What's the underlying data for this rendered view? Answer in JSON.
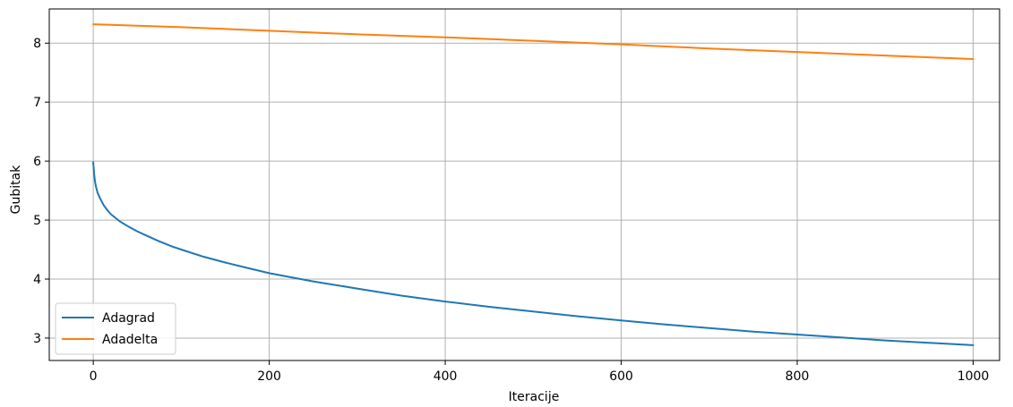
{
  "chart_data": {
    "type": "line",
    "title": "",
    "xlabel": "Iteracije",
    "ylabel": "Gubitak",
    "xlim": [
      -50,
      1030
    ],
    "ylim": [
      2.62,
      8.58
    ],
    "xticks": [
      0,
      200,
      400,
      600,
      800,
      1000
    ],
    "yticks": [
      3,
      4,
      5,
      6,
      7,
      8
    ],
    "grid": true,
    "legend_position": "lower-left",
    "series": [
      {
        "name": "Adagrad",
        "color": "#1f77b4",
        "x": [
          0,
          1,
          2,
          3,
          5,
          8,
          12,
          16,
          20,
          25,
          30,
          40,
          50,
          60,
          75,
          90,
          100,
          125,
          150,
          175,
          200,
          250,
          300,
          350,
          400,
          450,
          500,
          550,
          600,
          650,
          700,
          750,
          800,
          850,
          900,
          950,
          1000
        ],
        "y": [
          5.98,
          5.78,
          5.65,
          5.57,
          5.46,
          5.36,
          5.25,
          5.17,
          5.1,
          5.04,
          4.98,
          4.89,
          4.81,
          4.74,
          4.64,
          4.55,
          4.5,
          4.38,
          4.28,
          4.19,
          4.1,
          3.96,
          3.84,
          3.72,
          3.62,
          3.53,
          3.45,
          3.37,
          3.3,
          3.23,
          3.17,
          3.11,
          3.06,
          3.01,
          2.96,
          2.92,
          2.88
        ]
      },
      {
        "name": "Adadelta",
        "color": "#ff7f0e",
        "x": [
          0,
          100,
          200,
          300,
          400,
          500,
          600,
          700,
          800,
          900,
          1000
        ],
        "y": [
          8.32,
          8.27,
          8.21,
          8.15,
          8.1,
          8.04,
          7.98,
          7.91,
          7.85,
          7.79,
          7.73
        ]
      }
    ]
  }
}
